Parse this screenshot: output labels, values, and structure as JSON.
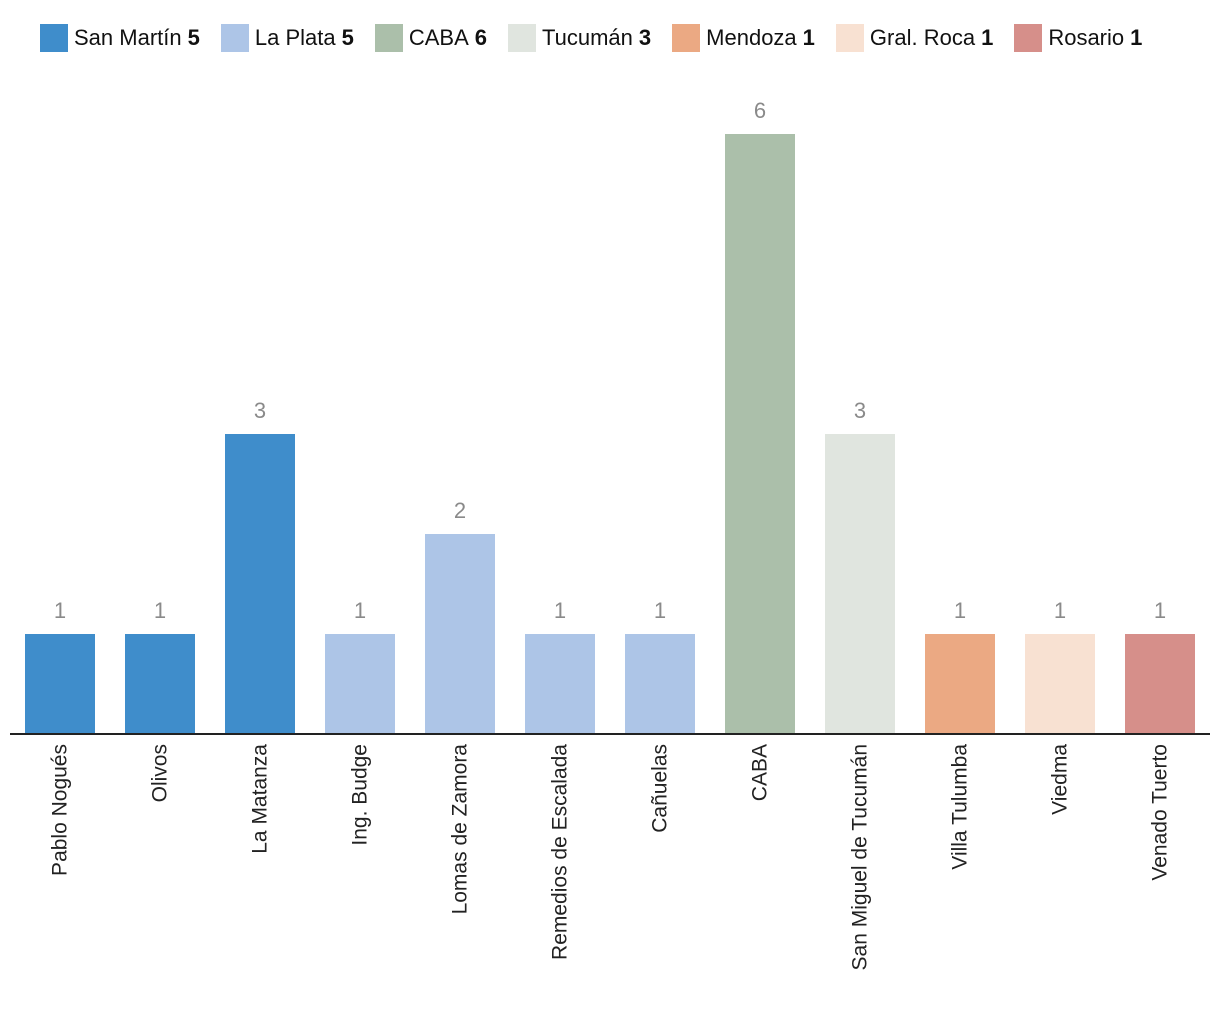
{
  "chart_data": {
    "type": "bar",
    "title": "",
    "xlabel": "",
    "ylabel": "",
    "ylim": [
      0,
      6
    ],
    "grid": false,
    "legend_position": "top",
    "categories": [
      "Pablo Nogués",
      "Olivos",
      "La Matanza",
      "Ing. Budge",
      "Lomas de Zamora",
      "Remedios de Escalada",
      "Cañuelas",
      "CABA",
      "San Miguel de Tucumán",
      "Villa Tulumba",
      "Viedma",
      "Venado Tuerto"
    ],
    "values": [
      1,
      1,
      3,
      1,
      2,
      1,
      1,
      6,
      3,
      1,
      1,
      1
    ],
    "data_labels": [
      "1",
      "1",
      "3",
      "1",
      "2",
      "1",
      "1",
      "6",
      "3",
      "1",
      "1",
      "1"
    ],
    "bar_groups": [
      "San Martín",
      "San Martín",
      "San Martín",
      "La Plata",
      "La Plata",
      "La Plata",
      "La Plata",
      "CABA",
      "Tucumán",
      "Mendoza",
      "Gral. Roca",
      "Rosario"
    ],
    "legend": [
      {
        "name": "San Martín",
        "count": "5",
        "color": "#3f8dcb"
      },
      {
        "name": "La Plata",
        "count": "5",
        "color": "#adc5e7"
      },
      {
        "name": "CABA",
        "count": "6",
        "color": "#abbfaa"
      },
      {
        "name": "Tucumán",
        "count": "3",
        "color": "#e0e5df"
      },
      {
        "name": "Mendoza",
        "count": "1",
        "color": "#eba983"
      },
      {
        "name": "Gral. Roca",
        "count": "1",
        "color": "#f8e1d2"
      },
      {
        "name": "Rosario",
        "count": "1",
        "color": "#d68f8a"
      }
    ]
  }
}
